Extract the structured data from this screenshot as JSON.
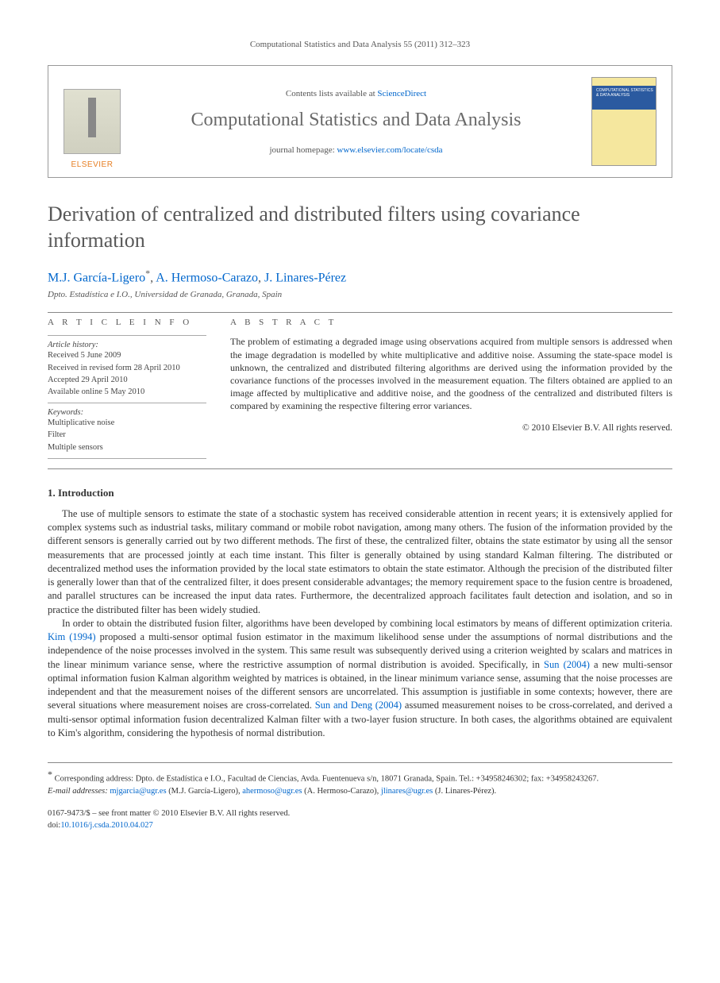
{
  "running_head": "Computational Statistics and Data Analysis 55 (2011) 312–323",
  "banner": {
    "publisher_label": "ELSEVIER",
    "contents_prefix": "Contents lists available at ",
    "contents_link_text": "ScienceDirect",
    "journal_name": "Computational Statistics and Data Analysis",
    "homepage_prefix": "journal homepage: ",
    "homepage_link_text": "www.elsevier.com/locate/csda",
    "cover_title": "COMPUTATIONAL STATISTICS & DATA ANALYSIS"
  },
  "article": {
    "title": "Derivation of centralized and distributed filters using covariance information",
    "authors_html_parts": {
      "a1": "M.J. García-Ligero",
      "sep1": ", ",
      "a2": "A. Hermoso-Carazo",
      "sep2": ", ",
      "a3": "J. Linares-Pérez"
    },
    "corresponding_mark": "*",
    "affiliation": "Dpto. Estadística e I.O., Universidad de Granada, Granada, Spain"
  },
  "info": {
    "heading": "A R T I C L E   I N F O",
    "history_label": "Article history:",
    "received": "Received 5 June 2009",
    "revised": "Received in revised form 28 April 2010",
    "accepted": "Accepted 29 April 2010",
    "online": "Available online 5 May 2010",
    "keywords_label": "Keywords:",
    "k1": "Multiplicative noise",
    "k2": "Filter",
    "k3": "Multiple sensors"
  },
  "abstract": {
    "heading": "A B S T R A C T",
    "text": "The problem of estimating a degraded image using observations acquired from multiple sensors is addressed when the image degradation is modelled by white multiplicative and additive noise. Assuming the state-space model is unknown, the centralized and distributed filtering algorithms are derived using the information provided by the covariance functions of the processes involved in the measurement equation. The filters obtained are applied to an image affected by multiplicative and additive noise, and the goodness of the centralized and distributed filters is compared by examining the respective filtering error variances.",
    "copyright": "© 2010 Elsevier B.V. All rights reserved."
  },
  "section1": {
    "heading": "1.  Introduction",
    "p1_a": "The use of multiple sensors to estimate the state of a stochastic system has received considerable attention in recent years; it is extensively applied for complex systems such as industrial tasks, military command or mobile robot navigation, among many others. The fusion of the information provided by the different sensors is generally carried out by two different methods. The first of these, the centralized filter, obtains the state estimator by using all the sensor measurements that are processed jointly at each time instant. This filter is generally obtained by using standard Kalman filtering. The distributed or decentralized method uses the information provided by the local state estimators to obtain the state estimator. Although the precision of the distributed filter is generally lower than that of the centralized filter, it does present considerable advantages; the memory requirement space to the fusion centre is broadened, and parallel structures can be increased the input data rates. Furthermore, the decentralized approach facilitates fault detection and isolation, and so in practice the distributed filter has been widely studied.",
    "p2_a": "In order to obtain the distributed fusion filter, algorithms have been developed by combining local estimators by means of different optimization criteria. ",
    "p2_link1": "Kim (1994)",
    "p2_b": " proposed a multi-sensor optimal fusion estimator in the maximum likelihood sense under the assumptions of normal distributions and the independence of the noise processes involved in the system. This same result was subsequently derived using a criterion weighted by scalars and matrices in the linear minimum variance sense, where the restrictive assumption of normal distribution is avoided. Specifically, in ",
    "p2_link2": "Sun (2004)",
    "p2_c": " a new multi-sensor optimal information fusion Kalman algorithm weighted by matrices is obtained, in the linear minimum variance sense, assuming that the noise processes are independent and that the measurement noises of the different sensors are uncorrelated. This assumption is justifiable in some contexts; however, there are several situations where measurement noises are cross-correlated. ",
    "p2_link3": "Sun and Deng (2004)",
    "p2_d": " assumed measurement noises to be cross-correlated, and derived a multi-sensor optimal information fusion decentralized Kalman filter with a two-layer fusion structure. In both cases, the algorithms obtained are equivalent to Kim's algorithm, considering the hypothesis of normal distribution."
  },
  "footnotes": {
    "corr_label": "Corresponding address: Dpto. de Estadística e I.O., Facultad de Ciencias, Avda. Fuentenueva s/n, 18071 Granada, Spain. Tel.: +34958246302; fax: +34958243267.",
    "email_label": "E-mail addresses:",
    "e1": "mjgarcia@ugr.es",
    "e1_who": " (M.J. García-Ligero), ",
    "e2": "ahermoso@ugr.es",
    "e2_who": " (A. Hermoso-Carazo), ",
    "e3": "jlinares@ugr.es",
    "e3_who": " (J. Linares-Pérez)."
  },
  "footer": {
    "line1": "0167-9473/$ – see front matter © 2010 Elsevier B.V. All rights reserved.",
    "doi_label": "doi:",
    "doi": "10.1016/j.csda.2010.04.027"
  }
}
